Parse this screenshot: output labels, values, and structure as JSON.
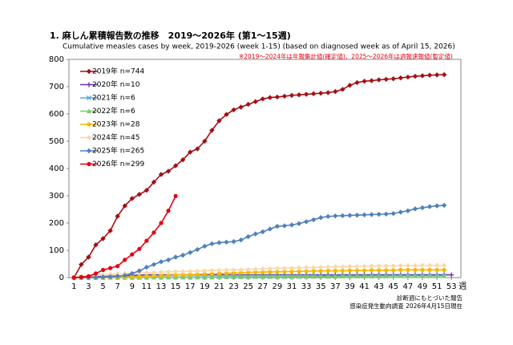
{
  "chart_data": {
    "type": "line",
    "title": "1. 麻しん累積報告数の推移　2019～2026年 (第1～15週)",
    "subtitle": "Cumulative measles cases by week, 2019-2026 (week 1-15)  (based on diagnosed week as of April 15, 2026)",
    "note": "※2019～2024年は年報集計値(確定値)、2025～2026年は週報速報値(暫定値)",
    "footnotes": [
      "診断週にもとづいた報告",
      "感染症発生動向調査 2026年4月15日現在"
    ],
    "xlabel": "週",
    "x": [
      1,
      2,
      3,
      4,
      5,
      6,
      7,
      8,
      9,
      10,
      11,
      12,
      13,
      14,
      15,
      16,
      17,
      18,
      19,
      20,
      21,
      22,
      23,
      24,
      25,
      26,
      27,
      28,
      29,
      30,
      31,
      32,
      33,
      34,
      35,
      36,
      37,
      38,
      39,
      40,
      41,
      42,
      43,
      44,
      45,
      46,
      47,
      48,
      49,
      50,
      51,
      52,
      53
    ],
    "xlim": [
      0.3,
      54.3
    ],
    "xticks": [
      1,
      3,
      5,
      7,
      9,
      11,
      13,
      15,
      17,
      19,
      21,
      23,
      25,
      27,
      29,
      31,
      33,
      35,
      37,
      39,
      41,
      43,
      45,
      47,
      49,
      51,
      53
    ],
    "ylim": [
      0,
      800
    ],
    "yticks": [
      0,
      100,
      200,
      300,
      400,
      500,
      600,
      700,
      800
    ],
    "legend": "upper-left",
    "series": [
      {
        "name": "2019年 n=744",
        "color": "#a50f15",
        "marker": "diamond",
        "values": [
          0,
          48,
          75,
          120,
          143,
          172,
          225,
          263,
          290,
          305,
          320,
          350,
          378,
          390,
          410,
          432,
          460,
          472,
          500,
          540,
          575,
          598,
          615,
          625,
          635,
          645,
          655,
          660,
          662,
          665,
          668,
          670,
          672,
          674,
          676,
          678,
          682,
          690,
          705,
          715,
          720,
          722,
          725,
          727,
          729,
          732,
          735,
          738,
          740,
          742,
          743,
          744,
          null
        ]
      },
      {
        "name": "2020年 n=10",
        "color": "#7030a0",
        "marker": "plus",
        "values": [
          0,
          1,
          2,
          3,
          4,
          5,
          6,
          7,
          8,
          9,
          10,
          10,
          10,
          10,
          10,
          10,
          10,
          10,
          10,
          10,
          10,
          10,
          10,
          10,
          10,
          10,
          10,
          10,
          10,
          10,
          10,
          10,
          10,
          10,
          10,
          10,
          10,
          10,
          10,
          10,
          10,
          10,
          10,
          10,
          10,
          10,
          10,
          10,
          10,
          10,
          10,
          10,
          10
        ]
      },
      {
        "name": "2021年 n=6",
        "color": "#4aa8e0",
        "marker": "cross",
        "values": [
          0,
          0,
          0,
          0,
          0,
          1,
          1,
          1,
          1,
          1,
          2,
          2,
          2,
          2,
          2,
          2,
          2,
          2,
          2,
          2,
          3,
          3,
          3,
          3,
          3,
          3,
          3,
          3,
          3,
          3,
          4,
          4,
          4,
          4,
          5,
          5,
          5,
          5,
          5,
          5,
          5,
          6,
          6,
          6,
          6,
          6,
          6,
          6,
          6,
          6,
          6,
          6,
          null
        ]
      },
      {
        "name": "2022年 n=6",
        "color": "#7bc96f",
        "marker": "triangle",
        "values": [
          0,
          0,
          0,
          0,
          0,
          0,
          0,
          0,
          0,
          0,
          1,
          1,
          1,
          1,
          1,
          1,
          1,
          1,
          1,
          1,
          2,
          2,
          2,
          2,
          2,
          3,
          3,
          3,
          3,
          3,
          3,
          4,
          4,
          4,
          4,
          4,
          4,
          5,
          5,
          5,
          5,
          5,
          5,
          5,
          6,
          6,
          6,
          6,
          6,
          6,
          6,
          6,
          null
        ]
      },
      {
        "name": "2023年 n=28",
        "color": "#f5b800",
        "marker": "circle",
        "values": [
          0,
          0,
          0,
          0,
          1,
          1,
          2,
          2,
          3,
          4,
          5,
          6,
          7,
          8,
          9,
          10,
          11,
          12,
          13,
          14,
          15,
          16,
          17,
          18,
          19,
          20,
          20,
          21,
          21,
          22,
          22,
          23,
          23,
          24,
          24,
          25,
          25,
          25,
          26,
          26,
          26,
          27,
          27,
          27,
          27,
          28,
          28,
          28,
          28,
          28,
          28,
          28,
          null
        ]
      },
      {
        "name": "2024年 n=45",
        "color": "#f8d9a8",
        "marker": "diamond",
        "values": [
          2,
          4,
          6,
          8,
          10,
          12,
          14,
          15,
          16,
          17,
          18,
          19,
          20,
          21,
          22,
          22,
          23,
          24,
          25,
          26,
          27,
          28,
          28,
          29,
          30,
          31,
          32,
          33,
          34,
          34,
          35,
          36,
          37,
          37,
          38,
          39,
          40,
          40,
          41,
          41,
          42,
          42,
          43,
          43,
          43,
          44,
          44,
          44,
          45,
          45,
          45,
          45,
          null
        ]
      },
      {
        "name": "2025年 n=265",
        "color": "#4f81bd",
        "marker": "diamond",
        "values": [
          0,
          0,
          0,
          0,
          2,
          3,
          5,
          8,
          15,
          25,
          38,
          48,
          58,
          65,
          75,
          82,
          92,
          103,
          115,
          124,
          128,
          130,
          132,
          138,
          150,
          160,
          168,
          178,
          188,
          190,
          193,
          198,
          205,
          212,
          220,
          224,
          226,
          227,
          228,
          229,
          230,
          231,
          232,
          233,
          235,
          240,
          245,
          252,
          256,
          260,
          263,
          265,
          null
        ]
      },
      {
        "name": "2026年 n=299",
        "color": "#e60012",
        "marker": "circle",
        "values": [
          0,
          2,
          5,
          15,
          28,
          35,
          42,
          65,
          85,
          105,
          135,
          165,
          200,
          245,
          299,
          null,
          null,
          null,
          null,
          null,
          null,
          null,
          null,
          null,
          null,
          null,
          null,
          null,
          null,
          null,
          null,
          null,
          null,
          null,
          null,
          null,
          null,
          null,
          null,
          null,
          null,
          null,
          null,
          null,
          null,
          null,
          null,
          null,
          null,
          null,
          null,
          null,
          null
        ]
      }
    ]
  }
}
